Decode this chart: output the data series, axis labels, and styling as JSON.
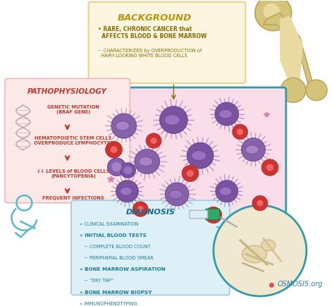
{
  "background_color": "#ffffff",
  "background_section": {
    "title": "BACKGROUND",
    "title_color": "#b8960a",
    "box_color": "#fdf5e0",
    "box_edge": "#e8d48a",
    "line1": "• RARE, CHRONIC CANCER that\n  AFFECTS BLOOD & BONE MARROW",
    "line2": "~ CHARACTERIZED by OVERPRODUCTION of\n  HAIRY-LOOKING WHITE BLOOD CELLS",
    "text_color": "#8a6a00"
  },
  "pathophysiology_section": {
    "title": "PATHOPHYSIOLOGY",
    "title_color": "#c0392b",
    "box_color": "#fde8e8",
    "box_edge": "#f0b8b8",
    "steps": [
      "GENETIC MUTATION\n(BRAF GENE)",
      "HEMATOPOIETIC STEM CELLS\nOVERPRODUCE LYMPHOCYTES",
      "⇓⇓ LEVELS of BLOOD CELLS\n(PANCYTOPENIA)",
      "FREQUENT INFECTIONS"
    ],
    "step_color": "#c0392b",
    "arrow_color": "#c0392b"
  },
  "diagnosis_section": {
    "title": "DIAGNOSIS",
    "title_color": "#1a6688",
    "box_color": "#ddf0f8",
    "box_edge": "#a0c8e0",
    "bullets": [
      [
        "» CLINICAL EXAMINATION",
        false
      ],
      [
        "» INITIAL BLOOD TESTS",
        true
      ],
      [
        "   ~ COMPLETE BLOOD COUNT",
        false
      ],
      [
        "   ~ PERIPHERAL BLOOD SMEAR",
        false
      ],
      [
        "» BONE MARROW ASPIRATION",
        true
      ],
      [
        "   ~ “DRY TAP”",
        false
      ],
      [
        "» BONE MARROW BIOPSY",
        true
      ],
      [
        "» IMMUNOPHENOTYPING",
        false
      ]
    ],
    "bullet_color": "#1a7a99"
  },
  "cell_panel": {
    "bg_color": "#f9dde8",
    "border_color": "#3399aa",
    "border_width": 2.0
  },
  "bone_color": "#d4c47a",
  "bone_shade": "#b8a055",
  "bone_inner": "#e8daa0",
  "syringe_green": "#2eaa6a",
  "syringe_body": "#d8eef8",
  "pelvis_bg": "#f0e8d0",
  "pelvis_border": "#3399aa",
  "osmosis_text": "OSMOSIS.org",
  "osmosis_color": "#2980b9",
  "osmosis_dot": "#e05050"
}
